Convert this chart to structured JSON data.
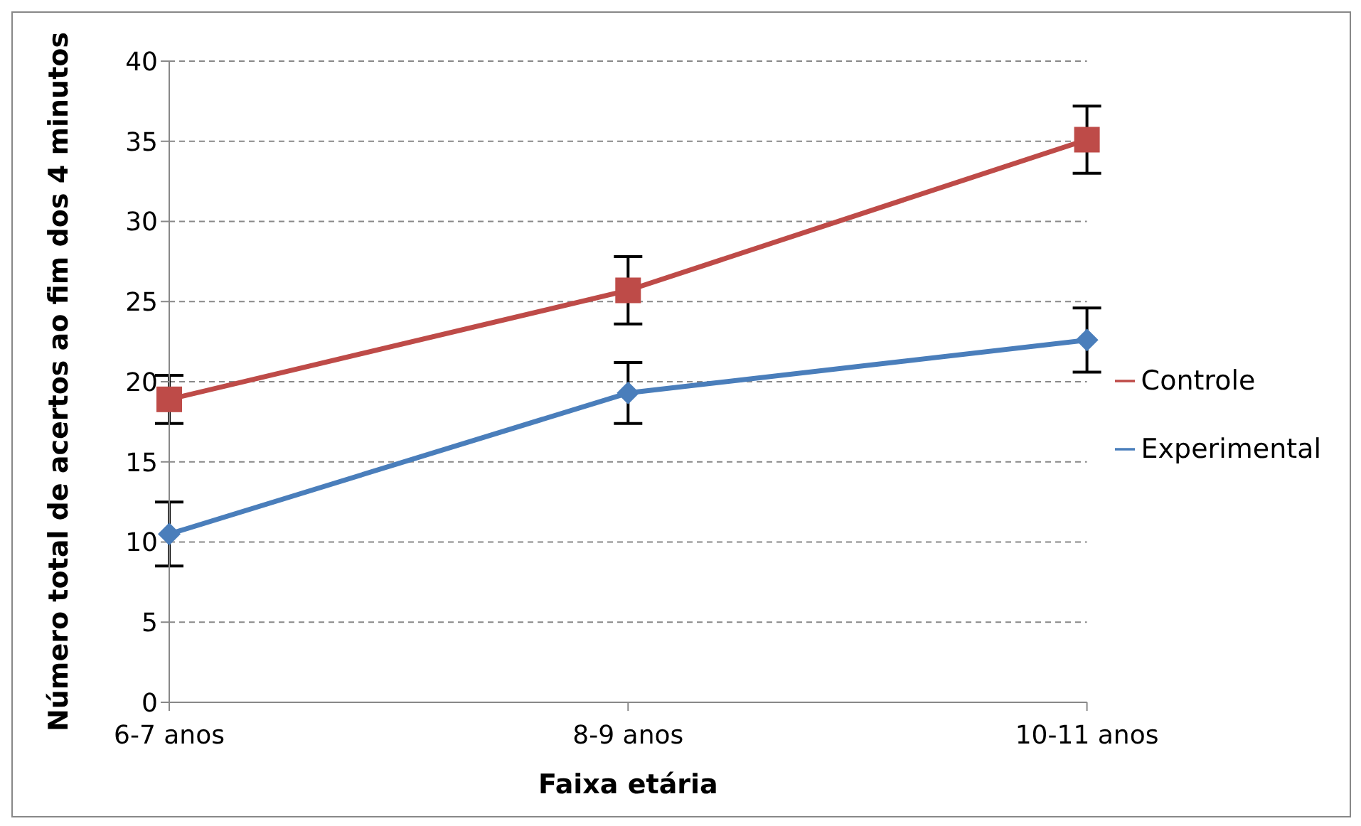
{
  "chart_data": {
    "type": "line",
    "xlabel": "Faixa etária",
    "ylabel": "Número total de acertos ao fim dos 4 minutos",
    "categories": [
      "6-7 anos",
      "8-9 anos",
      "10-11 anos"
    ],
    "series": [
      {
        "name": "Experimental",
        "color": "#4a7ebb",
        "marker": "diamond",
        "values": [
          10.5,
          19.3,
          22.6
        ],
        "errors": [
          2,
          1.9,
          2
        ]
      },
      {
        "name": "Controle",
        "color": "#be4b48",
        "marker": "square",
        "values": [
          18.9,
          25.7,
          35.1
        ],
        "errors": [
          1.5,
          2.1,
          2.1
        ]
      }
    ],
    "ylim": [
      0,
      40
    ],
    "yticks": [
      0,
      5,
      10,
      15,
      20,
      25,
      30,
      35,
      40
    ],
    "grid": "y",
    "legend": "right"
  }
}
